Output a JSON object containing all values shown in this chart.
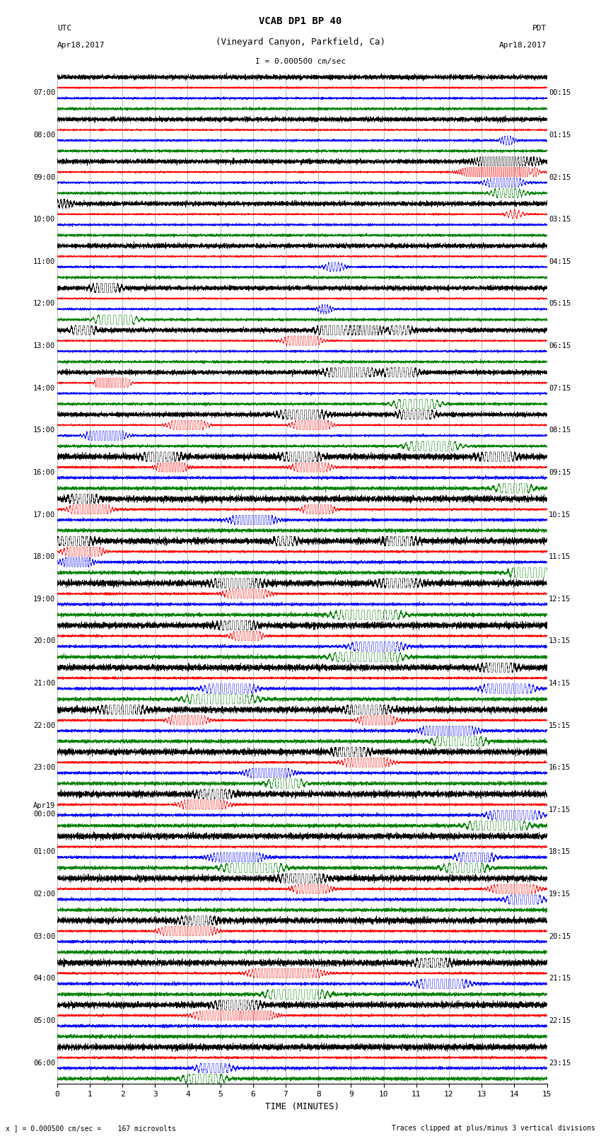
{
  "title_line1": "VCAB DP1 BP 40",
  "title_line2": "(Vineyard Canyon, Parkfield, Ca)",
  "scale_label": "I = 0.000500 cm/sec",
  "utc_label": "UTC\nApr18,2017",
  "pdt_label": "PDT\nApr18,2017",
  "xlabel": "TIME (MINUTES)",
  "footer_left": "x ] = 0.000500 cm/sec =    167 microvolts",
  "footer_right": "Traces clipped at plus/minus 3 vertical divisions",
  "left_times": [
    "07:00",
    "08:00",
    "09:00",
    "10:00",
    "11:00",
    "12:00",
    "13:00",
    "14:00",
    "15:00",
    "16:00",
    "17:00",
    "18:00",
    "19:00",
    "20:00",
    "21:00",
    "22:00",
    "23:00",
    "Apr19\n00:00",
    "01:00",
    "02:00",
    "03:00",
    "04:00",
    "05:00",
    "06:00"
  ],
  "right_times": [
    "00:15",
    "01:15",
    "02:15",
    "03:15",
    "04:15",
    "05:15",
    "06:15",
    "07:15",
    "08:15",
    "09:15",
    "10:15",
    "11:15",
    "12:15",
    "13:15",
    "14:15",
    "15:15",
    "16:15",
    "17:15",
    "18:15",
    "19:15",
    "20:15",
    "21:15",
    "22:15",
    "23:15"
  ],
  "colors": [
    "black",
    "red",
    "blue",
    "green"
  ],
  "n_rows": 24,
  "n_traces_per_row": 4,
  "xlim": [
    0,
    15
  ],
  "bg_color": "white",
  "noise_amp": 0.08,
  "signal_seed": 42
}
